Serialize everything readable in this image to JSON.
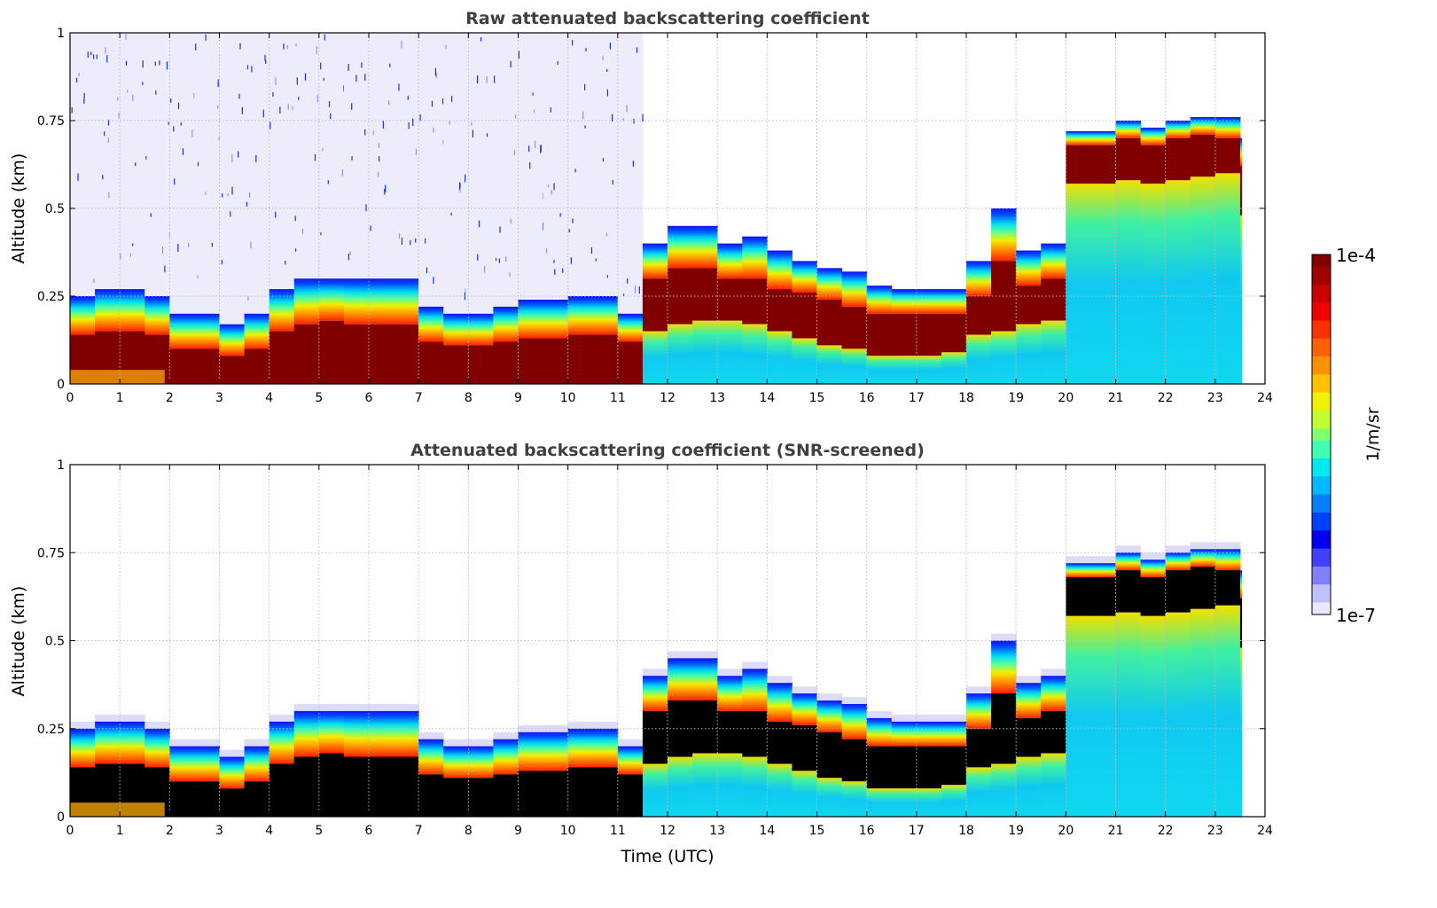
{
  "chart_data": [
    {
      "type": "heatmap",
      "title": "Raw attenuated backscattering coefficient",
      "xlabel": "",
      "ylabel": "Altitude (km)",
      "xlim": [
        0,
        24
      ],
      "ylim": [
        0,
        1
      ],
      "xticks": [
        "0",
        "1",
        "2",
        "3",
        "4",
        "5",
        "6",
        "7",
        "8",
        "9",
        "10",
        "11",
        "12",
        "13",
        "14",
        "15",
        "16",
        "17",
        "18",
        "19",
        "20",
        "21",
        "22",
        "23",
        "24"
      ],
      "yticks": [
        "0",
        "0.25",
        "0.5",
        "0.75",
        "1"
      ],
      "grid": true,
      "saturated_color": "#800000"
    },
    {
      "type": "heatmap",
      "title": "Attenuated backscattering coefficient (SNR-screened)",
      "xlabel": "Time (UTC)",
      "ylabel": "Altitude (km)",
      "xlim": [
        0,
        24
      ],
      "ylim": [
        0,
        1
      ],
      "xticks": [
        "0",
        "1",
        "2",
        "3",
        "4",
        "5",
        "6",
        "7",
        "8",
        "9",
        "10",
        "11",
        "12",
        "13",
        "14",
        "15",
        "16",
        "17",
        "18",
        "19",
        "20",
        "21",
        "22",
        "23",
        "24"
      ],
      "yticks": [
        "0",
        "0.25",
        "0.5",
        "0.75",
        "1"
      ],
      "grid": true,
      "saturated_color": "#000000"
    }
  ],
  "profile": {
    "time_utc": [
      0,
      0.5,
      1,
      1.5,
      2,
      2.5,
      3,
      3.5,
      4,
      4.5,
      5,
      5.5,
      6,
      6.5,
      7,
      7.5,
      8,
      8.5,
      9,
      9.5,
      10,
      10.5,
      11,
      11.5,
      12,
      12.5,
      13,
      13.5,
      14,
      14.5,
      15,
      15.5,
      16,
      16.5,
      17,
      17.5,
      18,
      18.5,
      19,
      19.5,
      20,
      20.5,
      21,
      21.5,
      22,
      22.5,
      23,
      23.5
    ],
    "signal_top_km": [
      0.25,
      0.27,
      0.27,
      0.25,
      0.2,
      0.2,
      0.17,
      0.2,
      0.27,
      0.3,
      0.3,
      0.3,
      0.3,
      0.3,
      0.22,
      0.2,
      0.2,
      0.22,
      0.24,
      0.24,
      0.25,
      0.25,
      0.2,
      0.4,
      0.45,
      0.45,
      0.4,
      0.42,
      0.38,
      0.35,
      0.33,
      0.32,
      0.28,
      0.27,
      0.27,
      0.27,
      0.35,
      0.5,
      0.38,
      0.4,
      0.72,
      0.72,
      0.75,
      0.73,
      0.75,
      0.76,
      0.76,
      0.7
    ],
    "strong_layer_top_km": [
      0.14,
      0.15,
      0.15,
      0.14,
      0.1,
      0.1,
      0.08,
      0.1,
      0.15,
      0.17,
      0.18,
      0.17,
      0.17,
      0.17,
      0.12,
      0.11,
      0.11,
      0.12,
      0.13,
      0.13,
      0.14,
      0.14,
      0.12,
      0.3,
      0.33,
      0.33,
      0.3,
      0.3,
      0.27,
      0.26,
      0.24,
      0.22,
      0.2,
      0.2,
      0.2,
      0.2,
      0.25,
      0.35,
      0.28,
      0.3,
      0.68,
      0.68,
      0.7,
      0.68,
      0.7,
      0.71,
      0.7,
      0.62
    ],
    "strong_layer_bottom_km": [
      0,
      0,
      0,
      0,
      0,
      0,
      0,
      0,
      0,
      0,
      0,
      0,
      0,
      0,
      0,
      0,
      0,
      0,
      0,
      0,
      0,
      0,
      0,
      0.15,
      0.17,
      0.18,
      0.18,
      0.17,
      0.15,
      0.13,
      0.11,
      0.1,
      0.08,
      0.08,
      0.08,
      0.09,
      0.14,
      0.15,
      0.17,
      0.18,
      0.57,
      0.57,
      0.58,
      0.57,
      0.58,
      0.59,
      0.6,
      0.48
    ]
  },
  "colorbar": {
    "label": "1/m/sr",
    "max_label": "1e-4",
    "min_label": "1e-7",
    "min": 1e-07,
    "max": 0.0001,
    "scale": "log"
  }
}
